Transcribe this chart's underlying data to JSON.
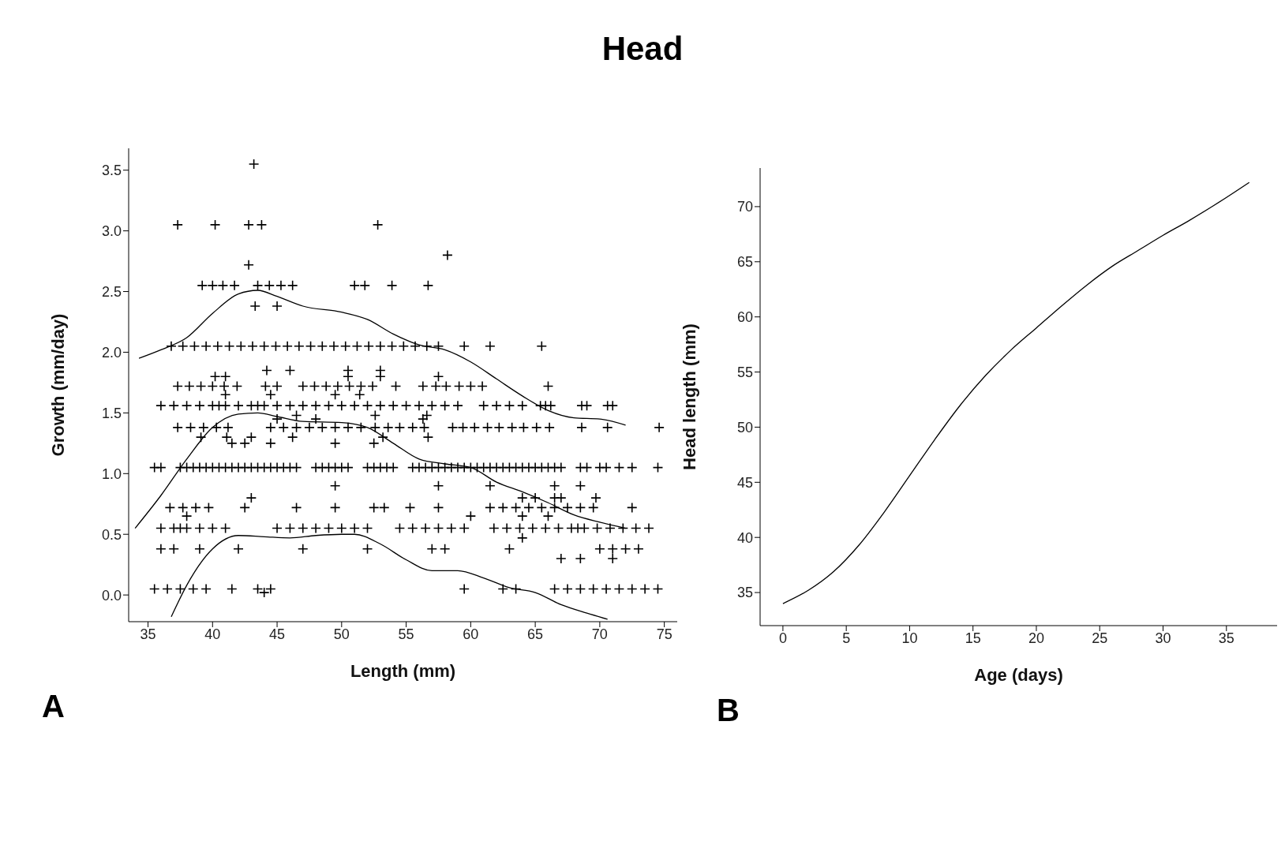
{
  "chart_data": [
    {
      "type": "scatter",
      "title": "Head",
      "xlabel": "Length (mm)",
      "ylabel": "Growth (mm/day)",
      "annotations": [
        "A"
      ],
      "grid": false,
      "legend": false,
      "xlim": [
        33.5,
        76
      ],
      "xticks": [
        35,
        40,
        45,
        50,
        55,
        60,
        65,
        70,
        75
      ],
      "ylim": [
        -0.22,
        3.68
      ],
      "yticks": [
        {
          "value": 0,
          "label": "0.0"
        },
        {
          "value": 0.5,
          "label": "0.5"
        },
        {
          "value": 1,
          "label": "1.0"
        },
        {
          "value": 1.5,
          "label": "1.5"
        },
        {
          "value": 2,
          "label": "2.0"
        },
        {
          "value": 2.5,
          "label": "2.5"
        },
        {
          "value": 3,
          "label": "3.0"
        },
        {
          "value": 3.5,
          "label": "3.5"
        }
      ],
      "series": [
        {
          "marker": "cross",
          "color": "#000000",
          "x": [
            43.2,
            37.3,
            40.2,
            42.8,
            43.8,
            52.8,
            42.8,
            58.2,
            39.2,
            40,
            40.8,
            41.7,
            43.5,
            44.4,
            45.3,
            46.2,
            51,
            51.8,
            53.9,
            56.7,
            43.3,
            45,
            36.8,
            37.7,
            38.6,
            39.5,
            40.4,
            41.3,
            42.2,
            43.1,
            44,
            44.9,
            45.8,
            46.7,
            47.6,
            48.5,
            49.4,
            50.3,
            51.2,
            52.1,
            53,
            53.9,
            54.8,
            55.7,
            56.6,
            57.5,
            59.5,
            61.5,
            65.5,
            44.2,
            46,
            50.5,
            53,
            40.2,
            41,
            50.5,
            53,
            57.5,
            37.3,
            38.2,
            39.1,
            40,
            40.9,
            41.9,
            44.1,
            45,
            47,
            47.9,
            48.8,
            49.7,
            50.6,
            51.5,
            52.4,
            54.2,
            56.3,
            57.3,
            58.1,
            59.1,
            60,
            60.9,
            66,
            41,
            44.5,
            49.5,
            51.4,
            36,
            37,
            38,
            39,
            40,
            40.5,
            41,
            42,
            43,
            43.5,
            44,
            45,
            46,
            47,
            48,
            49,
            50,
            51,
            52,
            53,
            54,
            55,
            56,
            57,
            58,
            59,
            61,
            62,
            63,
            64,
            65.4,
            65.8,
            66.2,
            68.6,
            69,
            70.6,
            71,
            46.5,
            52.6,
            56.6,
            45,
            48,
            56.3,
            37.3,
            38.3,
            39.3,
            40.3,
            41.2,
            44.5,
            45.5,
            46.5,
            47.5,
            48.5,
            49.5,
            50.5,
            51.5,
            52.6,
            53.6,
            54.5,
            55.5,
            56.4,
            58.6,
            59.4,
            60.3,
            61.3,
            62.2,
            63.2,
            64.1,
            65.1,
            66.1,
            68.6,
            70.6,
            74.6,
            39.1,
            41.1,
            43,
            46.2,
            53.2,
            56.7,
            41.5,
            42.5,
            44.5,
            49.5,
            52.5,
            35.5,
            36,
            37.5,
            38,
            38.5,
            39,
            39.5,
            40,
            40.5,
            41,
            41.5,
            42,
            42.5,
            43,
            43.5,
            44,
            44.5,
            45,
            45.5,
            46,
            46.5,
            48,
            48.5,
            49,
            49.5,
            50,
            50.5,
            52,
            52.5,
            53,
            53.5,
            54,
            55.5,
            56,
            56.5,
            57,
            57.5,
            58,
            58.5,
            59,
            59.5,
            60,
            60.5,
            61,
            61.5,
            62,
            62.5,
            63,
            63.5,
            64,
            64.5,
            65,
            65.5,
            66,
            66.5,
            67,
            68.5,
            69,
            70,
            70.5,
            71.5,
            72.5,
            74.5,
            49.5,
            57.5,
            61.5,
            66.5,
            68.5,
            43,
            64,
            65,
            66.5,
            67,
            69.7,
            36.7,
            37.7,
            38.7,
            39.7,
            42.5,
            46.5,
            49.5,
            52.5,
            53.3,
            55.3,
            57.5,
            61.5,
            62.5,
            63.5,
            64.5,
            65.5,
            66.5,
            67.5,
            68.5,
            69.5,
            72.5,
            38,
            60,
            64,
            66,
            36,
            37,
            37.5,
            38,
            39,
            40,
            41,
            45,
            46,
            47,
            48,
            49,
            50,
            51,
            52,
            54.5,
            55.5,
            56.5,
            57.5,
            58.5,
            59.5,
            61.8,
            62.8,
            63.8,
            64.8,
            65.8,
            66.8,
            67.8,
            68.3,
            68.8,
            69.8,
            70.8,
            71.8,
            72.8,
            73.8,
            64,
            36,
            37,
            39,
            42,
            47,
            52,
            57,
            58,
            63,
            70,
            71,
            72,
            73,
            67,
            68.5,
            71,
            35.5,
            36.5,
            37.5,
            38.5,
            39.5,
            41.5,
            43.5,
            44.5,
            59.5,
            62.5,
            63.5,
            66.5,
            67.5,
            68.5,
            69.5,
            70.5,
            71.5,
            72.5,
            73.5,
            74.5,
            44
          ],
          "values": [
            3.55,
            3.05,
            3.05,
            3.05,
            3.05,
            3.05,
            2.72,
            2.8,
            2.55,
            2.55,
            2.55,
            2.55,
            2.55,
            2.55,
            2.55,
            2.55,
            2.55,
            2.55,
            2.55,
            2.55,
            2.38,
            2.38,
            2.05,
            2.05,
            2.05,
            2.05,
            2.05,
            2.05,
            2.05,
            2.05,
            2.05,
            2.05,
            2.05,
            2.05,
            2.05,
            2.05,
            2.05,
            2.05,
            2.05,
            2.05,
            2.05,
            2.05,
            2.05,
            2.05,
            2.05,
            2.05,
            2.05,
            2.05,
            2.05,
            1.85,
            1.85,
            1.85,
            1.85,
            1.8,
            1.8,
            1.8,
            1.8,
            1.8,
            1.72,
            1.72,
            1.72,
            1.72,
            1.72,
            1.72,
            1.72,
            1.72,
            1.72,
            1.72,
            1.72,
            1.72,
            1.72,
            1.72,
            1.72,
            1.72,
            1.72,
            1.72,
            1.72,
            1.72,
            1.72,
            1.72,
            1.72,
            1.65,
            1.65,
            1.65,
            1.65,
            1.56,
            1.56,
            1.56,
            1.56,
            1.56,
            1.56,
            1.56,
            1.56,
            1.56,
            1.56,
            1.56,
            1.56,
            1.56,
            1.56,
            1.56,
            1.56,
            1.56,
            1.56,
            1.56,
            1.56,
            1.56,
            1.56,
            1.56,
            1.56,
            1.56,
            1.56,
            1.56,
            1.56,
            1.56,
            1.56,
            1.56,
            1.56,
            1.56,
            1.56,
            1.56,
            1.56,
            1.56,
            1.48,
            1.48,
            1.48,
            1.45,
            1.45,
            1.45,
            1.38,
            1.38,
            1.38,
            1.38,
            1.38,
            1.38,
            1.38,
            1.38,
            1.38,
            1.38,
            1.38,
            1.38,
            1.38,
            1.38,
            1.38,
            1.38,
            1.38,
            1.38,
            1.38,
            1.38,
            1.38,
            1.38,
            1.38,
            1.38,
            1.38,
            1.38,
            1.38,
            1.38,
            1.38,
            1.38,
            1.3,
            1.3,
            1.3,
            1.3,
            1.3,
            1.3,
            1.25,
            1.25,
            1.25,
            1.25,
            1.25,
            1.05,
            1.05,
            1.05,
            1.05,
            1.05,
            1.05,
            1.05,
            1.05,
            1.05,
            1.05,
            1.05,
            1.05,
            1.05,
            1.05,
            1.05,
            1.05,
            1.05,
            1.05,
            1.05,
            1.05,
            1.05,
            1.05,
            1.05,
            1.05,
            1.05,
            1.05,
            1.05,
            1.05,
            1.05,
            1.05,
            1.05,
            1.05,
            1.05,
            1.05,
            1.05,
            1.05,
            1.05,
            1.05,
            1.05,
            1.05,
            1.05,
            1.05,
            1.05,
            1.05,
            1.05,
            1.05,
            1.05,
            1.05,
            1.05,
            1.05,
            1.05,
            1.05,
            1.05,
            1.05,
            1.05,
            1.05,
            1.05,
            1.05,
            1.05,
            1.05,
            1.05,
            1.05,
            1.05,
            0.9,
            0.9,
            0.9,
            0.9,
            0.9,
            0.8,
            0.8,
            0.8,
            0.8,
            0.8,
            0.8,
            0.72,
            0.72,
            0.72,
            0.72,
            0.72,
            0.72,
            0.72,
            0.72,
            0.72,
            0.72,
            0.72,
            0.72,
            0.72,
            0.72,
            0.72,
            0.72,
            0.72,
            0.72,
            0.72,
            0.72,
            0.72,
            0.65,
            0.65,
            0.65,
            0.65,
            0.55,
            0.55,
            0.55,
            0.55,
            0.55,
            0.55,
            0.55,
            0.55,
            0.55,
            0.55,
            0.55,
            0.55,
            0.55,
            0.55,
            0.55,
            0.55,
            0.55,
            0.55,
            0.55,
            0.55,
            0.55,
            0.55,
            0.55,
            0.55,
            0.55,
            0.55,
            0.55,
            0.55,
            0.55,
            0.55,
            0.55,
            0.55,
            0.55,
            0.55,
            0.55,
            0.47,
            0.38,
            0.38,
            0.38,
            0.38,
            0.38,
            0.38,
            0.38,
            0.38,
            0.38,
            0.38,
            0.38,
            0.38,
            0.38,
            0.3,
            0.3,
            0.3,
            0.05,
            0.05,
            0.05,
            0.05,
            0.05,
            0.05,
            0.05,
            0.05,
            0.05,
            0.05,
            0.05,
            0.05,
            0.05,
            0.05,
            0.05,
            0.05,
            0.05,
            0.05,
            0.05,
            0.05,
            0.02
          ]
        },
        {
          "type": "line",
          "marker": "none",
          "color": "#000000",
          "x": [
            34.3,
            36,
            38,
            40,
            42,
            43.5,
            45,
            47,
            50,
            52,
            54,
            56,
            58,
            60,
            62,
            64,
            66,
            68,
            70,
            72
          ],
          "values": [
            1.95,
            2.02,
            2.12,
            2.32,
            2.48,
            2.51,
            2.46,
            2.38,
            2.33,
            2.27,
            2.15,
            2.06,
            2.02,
            1.92,
            1.78,
            1.64,
            1.52,
            1.46,
            1.45,
            1.4
          ]
        },
        {
          "type": "line",
          "marker": "none",
          "color": "#000000",
          "x": [
            34,
            36,
            38,
            40,
            42,
            43.5,
            45,
            47,
            50,
            52,
            54,
            56,
            58,
            60,
            62,
            64,
            66,
            68,
            70,
            72
          ],
          "values": [
            0.55,
            0.82,
            1.12,
            1.38,
            1.49,
            1.5,
            1.47,
            1.43,
            1.42,
            1.38,
            1.25,
            1.12,
            1.08,
            1.05,
            0.93,
            0.85,
            0.76,
            0.66,
            0.6,
            0.55
          ]
        },
        {
          "type": "line",
          "marker": "none",
          "color": "#000000",
          "x": [
            36.8,
            38,
            40,
            42,
            44,
            46,
            48,
            50,
            51,
            53,
            55,
            57,
            59,
            61,
            63,
            65,
            67,
            69,
            70.6
          ],
          "values": [
            -0.18,
            0.08,
            0.38,
            0.49,
            0.48,
            0.47,
            0.49,
            0.5,
            0.5,
            0.42,
            0.29,
            0.2,
            0.2,
            0.14,
            0.06,
            0.02,
            -0.08,
            -0.15,
            -0.2
          ]
        }
      ]
    },
    {
      "type": "line",
      "xlabel": "Age (days)",
      "ylabel": "Head length (mm)",
      "annotations": [
        "B"
      ],
      "grid": false,
      "legend": false,
      "marker": "none",
      "xlim": [
        -1.8,
        39
      ],
      "xticks": [
        0,
        5,
        10,
        15,
        20,
        25,
        30,
        35
      ],
      "ylim": [
        32,
        73.5
      ],
      "yticks": [
        35,
        40,
        45,
        50,
        55,
        60,
        65,
        70
      ],
      "series": [
        {
          "color": "#000000",
          "x": [
            0,
            2,
            4,
            6,
            8,
            10,
            12,
            14,
            16,
            18,
            20,
            22,
            24,
            26,
            28,
            30,
            32,
            34,
            36.8
          ],
          "values": [
            34,
            35.2,
            36.9,
            39.3,
            42.3,
            45.6,
            48.9,
            52,
            54.7,
            57,
            59,
            61,
            62.9,
            64.6,
            66,
            67.4,
            68.7,
            70.1,
            72.2
          ]
        }
      ]
    }
  ]
}
